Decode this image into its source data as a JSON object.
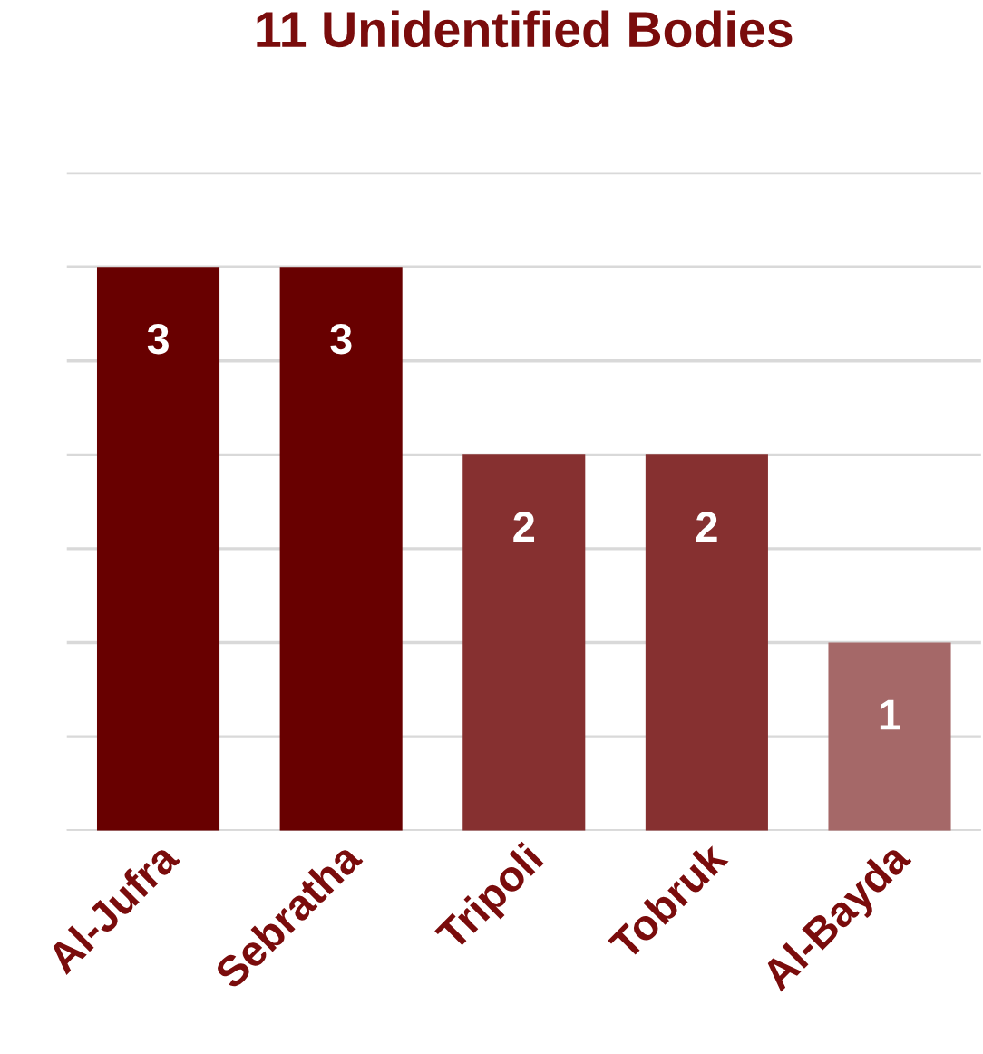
{
  "chart_data": {
    "type": "bar",
    "title": "11 Unidentified Bodies",
    "categories": [
      "Al-Jufra",
      "Sebratha",
      "Tripoli",
      "Tobruk",
      "Al-Bayda"
    ],
    "values": [
      3,
      3,
      2,
      2,
      1
    ],
    "colors": [
      "#680000",
      "#680000",
      "#863030",
      "#863030",
      "#a56868"
    ],
    "ylim": [
      0,
      3.5
    ],
    "yticks": [
      {
        "value": 0,
        "label": null
      },
      {
        "value": 0.5,
        "label": null
      },
      {
        "value": 1,
        "label": null
      },
      {
        "value": 1.5,
        "label": null
      },
      {
        "value": 2,
        "label": null
      },
      {
        "value": 2.5,
        "label": null
      },
      {
        "value": 3,
        "label": null
      },
      {
        "value": 3.5,
        "label": null
      }
    ],
    "grid": "y",
    "tick_labels": "x",
    "data_labels": true
  }
}
